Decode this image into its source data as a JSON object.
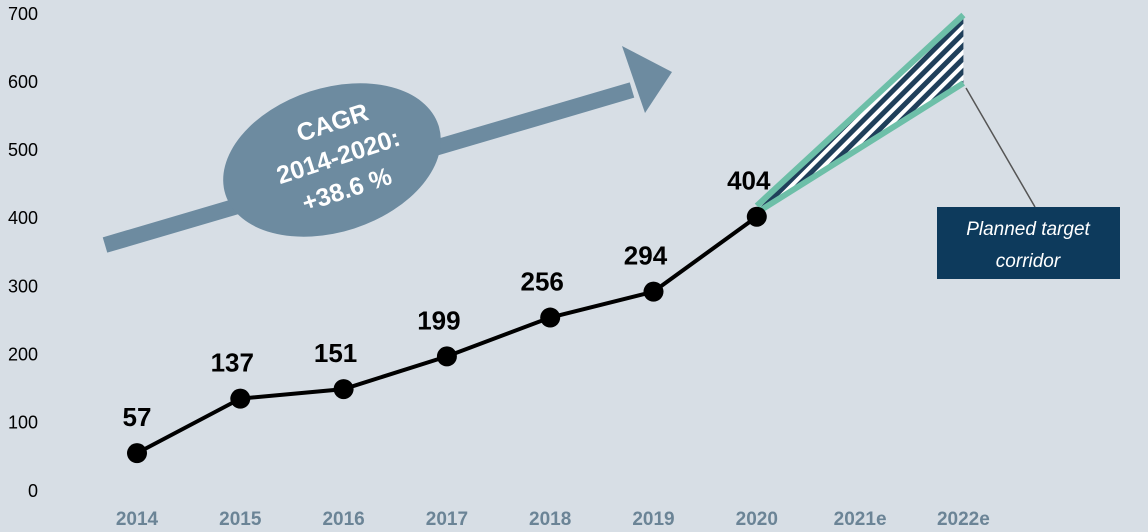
{
  "chart_data": {
    "type": "line",
    "categories": [
      "2014",
      "2015",
      "2016",
      "2017",
      "2018",
      "2019",
      "2020",
      "2021e",
      "2022e"
    ],
    "series": [
      {
        "color": "#000000",
        "values": [
          57,
          137,
          151,
          199,
          256,
          294,
          404,
          null,
          null
        ]
      },
      {
        "color": "#6dbfa8",
        "values": [
          null,
          null,
          null,
          null,
          null,
          null,
          420,
          560,
          700
        ]
      },
      {
        "color": "#6dbfa8",
        "values": [
          null,
          null,
          null,
          null,
          null,
          null,
          410,
          505,
          600
        ]
      }
    ],
    "ylim": [
      0,
      700
    ],
    "yticks": [
      0,
      100,
      200,
      300,
      400,
      500,
      600,
      700
    ],
    "grid": false,
    "annotations": {
      "cagr": [
        "CAGR",
        "2014-2020:",
        "+38.6 %"
      ],
      "corridor": [
        "Planned target",
        "corridor"
      ]
    }
  }
}
